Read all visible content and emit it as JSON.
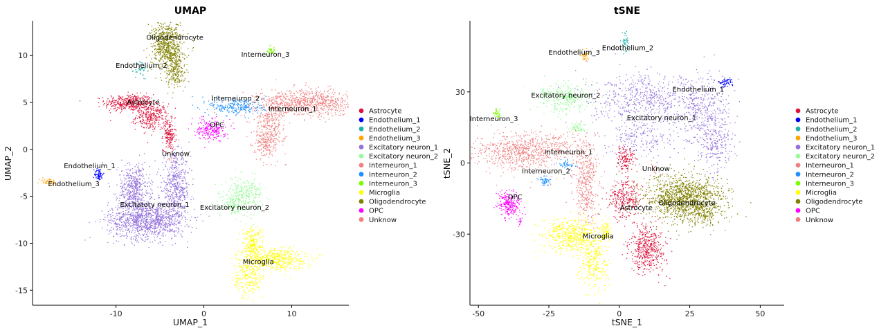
{
  "chart_data": [
    {
      "type": "scatter",
      "title": "UMAP",
      "xlabel": "UMAP_1",
      "ylabel": "UMAP_2",
      "xlim": [
        -19.5,
        16.5
      ],
      "ylim": [
        -16.6,
        13.7
      ],
      "xticks": [
        -10,
        0,
        10
      ],
      "yticks": [
        -15,
        -10,
        -5,
        0,
        5,
        10
      ],
      "clusters": [
        {
          "name": "Astrocyte",
          "label": "Astrocyte",
          "parts": [
            {
              "x": -8.5,
              "y": 5.0,
              "sx": 1.4,
              "sy": 0.45,
              "n": 420
            },
            {
              "x": -6.0,
              "y": 3.5,
              "sx": 0.9,
              "sy": 0.7,
              "n": 300
            },
            {
              "x": -4.0,
              "y": 1.6,
              "sx": 0.35,
              "sy": 0.8,
              "n": 160
            }
          ],
          "label_x": -6.9,
          "label_y": 5.0
        },
        {
          "name": "Endothelium_1",
          "label": "Endothelium_1",
          "parts": [
            {
              "x": -12.0,
              "y": -2.6,
              "sx": 0.25,
              "sy": 0.35,
              "n": 70
            }
          ],
          "label_x": -13.0,
          "label_y": -1.8
        },
        {
          "name": "Endothelium_2",
          "label": "Endothelium_2",
          "parts": [
            {
              "x": -7.2,
              "y": 8.5,
              "sx": 0.35,
              "sy": 0.5,
              "n": 45
            }
          ],
          "label_x": -7.1,
          "label_y": 8.9
        },
        {
          "name": "Endothelium_3",
          "label": "Endothelium_3",
          "parts": [
            {
              "x": -17.8,
              "y": -3.4,
              "sx": 0.5,
              "sy": 0.2,
              "n": 45
            }
          ],
          "label_x": -14.8,
          "label_y": -3.7
        },
        {
          "name": "Excitatory neuron_1",
          "label": "Excitatory neuron_1",
          "parts": [
            {
              "x": -6.5,
              "y": -7.5,
              "sx": 2.2,
              "sy": 1.0,
              "n": 1100
            },
            {
              "x": -8.0,
              "y": -4.2,
              "sx": 0.9,
              "sy": 1.3,
              "n": 480
            },
            {
              "x": -3.2,
              "y": -4.0,
              "sx": 0.8,
              "sy": 1.7,
              "n": 480
            }
          ],
          "label_x": -5.6,
          "label_y": -5.9
        },
        {
          "name": "Excitatory neuron_2",
          "label": "Excitatory neuron_2",
          "parts": [
            {
              "x": 4.5,
              "y": -4.8,
              "sx": 1.1,
              "sy": 0.9,
              "n": 300
            },
            {
              "x": 3.2,
              "y": -5.8,
              "sx": 0.6,
              "sy": 0.5,
              "n": 80
            }
          ],
          "label_x": 3.5,
          "label_y": -6.2
        },
        {
          "name": "Interneuron_1",
          "label": "Interneuron_1",
          "parts": [
            {
              "x": 12.0,
              "y": 5.0,
              "sx": 3.0,
              "sy": 0.7,
              "n": 850
            },
            {
              "x": 7.5,
              "y": 2.5,
              "sx": 0.9,
              "sy": 1.5,
              "n": 320
            },
            {
              "x": 6.8,
              "y": 0.6,
              "sx": 0.5,
              "sy": 0.7,
              "n": 120
            }
          ],
          "label_x": 10.1,
          "label_y": 4.3
        },
        {
          "name": "Interneuron_2",
          "label": "Interneuron_2",
          "parts": [
            {
              "x": 3.8,
              "y": 4.6,
              "sx": 1.6,
              "sy": 0.5,
              "n": 260
            }
          ],
          "label_x": 3.6,
          "label_y": 5.4
        },
        {
          "name": "Interneuron_3",
          "label": "Interneuron_3",
          "parts": [
            {
              "x": 7.6,
              "y": 10.6,
              "sx": 0.25,
              "sy": 0.25,
              "n": 35
            }
          ],
          "label_x": 7.0,
          "label_y": 10.1
        },
        {
          "name": "Microglia",
          "label": "Microglia",
          "parts": [
            {
              "x": 8.0,
              "y": -11.6,
              "sx": 1.8,
              "sy": 0.6,
              "n": 450
            },
            {
              "x": 5.5,
              "y": -10.0,
              "sx": 0.6,
              "sy": 0.9,
              "n": 220
            },
            {
              "x": 5.0,
              "y": -13.6,
              "sx": 0.8,
              "sy": 1.1,
              "n": 220
            }
          ],
          "label_x": 6.2,
          "label_y": -12.0
        },
        {
          "name": "Oligodendrocyte",
          "label": "Oligodendrocyte",
          "parts": [
            {
              "x": -4.2,
              "y": 11.0,
              "sx": 0.9,
              "sy": 1.3,
              "n": 700
            },
            {
              "x": -3.2,
              "y": 8.3,
              "sx": 0.5,
              "sy": 0.9,
              "n": 180
            }
          ],
          "label_x": -3.3,
          "label_y": 11.9
        },
        {
          "name": "OPC",
          "label": "OPC",
          "parts": [
            {
              "x": 0.8,
              "y": 2.2,
              "sx": 0.8,
              "sy": 0.6,
              "n": 220
            }
          ],
          "label_x": 1.5,
          "label_y": 2.6
        },
        {
          "name": "Unknow",
          "label": "Unknow",
          "parts": [
            {
              "x": -3.8,
              "y": -1.0,
              "sx": 0.2,
              "sy": 0.2,
              "n": 10
            }
          ],
          "label_x": -3.2,
          "label_y": -0.5
        }
      ]
    },
    {
      "type": "scatter",
      "title": "tSNE",
      "xlabel": "tSNE_1",
      "ylabel": "tSNE_2",
      "xlim": [
        -53,
        58.5
      ],
      "ylim": [
        -60,
        60
      ],
      "xticks": [
        -50,
        -25,
        0,
        25,
        50
      ],
      "yticks": [
        -30,
        0,
        30
      ],
      "clusters": [
        {
          "name": "Astrocyte",
          "label": "Astrocyte",
          "parts": [
            {
              "x": 10.0,
              "y": -36.0,
              "sx": 3.2,
              "sy": 5.0,
              "n": 450
            },
            {
              "x": 2.0,
              "y": -15.0,
              "sx": 3.0,
              "sy": 4.0,
              "n": 280
            },
            {
              "x": 2.0,
              "y": 2.0,
              "sx": 1.6,
              "sy": 3.2,
              "n": 140
            }
          ],
          "label_x": 6.0,
          "label_y": -19.0
        },
        {
          "name": "Endothelium_1",
          "label": "Endothelium_1",
          "parts": [
            {
              "x": 37.5,
              "y": 34.0,
              "sx": 1.3,
              "sy": 1.0,
              "n": 60
            }
          ],
          "label_x": 28.0,
          "label_y": 31.0
        },
        {
          "name": "Endothelium_2",
          "label": "Endothelium_2",
          "parts": [
            {
              "x": 1.8,
              "y": 51.0,
              "sx": 0.8,
              "sy": 2.0,
              "n": 45
            }
          ],
          "label_x": 3.0,
          "label_y": 48.5
        },
        {
          "name": "Endothelium_3",
          "label": "Endothelium_3",
          "parts": [
            {
              "x": -12.5,
              "y": 45.5,
              "sx": 1.0,
              "sy": 1.2,
              "n": 35
            }
          ],
          "label_x": -16.0,
          "label_y": 46.5
        },
        {
          "name": "Excitatory neuron_1",
          "label": "Excitatory neuron_1",
          "parts": [
            {
              "x": 10.0,
              "y": 27.0,
              "sx": 10.0,
              "sy": 5.0,
              "n": 550
            },
            {
              "x": 30.0,
              "y": 23.0,
              "sx": 4.5,
              "sy": 7.0,
              "n": 350
            },
            {
              "x": 34.0,
              "y": 8.0,
              "sx": 3.0,
              "sy": 5.0,
              "n": 220
            },
            {
              "x": 8.0,
              "y": 11.0,
              "sx": 6.0,
              "sy": 4.5,
              "n": 220
            }
          ],
          "label_x": 15.0,
          "label_y": 19.0
        },
        {
          "name": "Excitatory neuron_2",
          "label": "Excitatory neuron_2",
          "parts": [
            {
              "x": -19.0,
              "y": 28.0,
              "sx": 5.0,
              "sy": 3.0,
              "n": 330
            },
            {
              "x": -15.0,
              "y": 15.0,
              "sx": 1.5,
              "sy": 1.2,
              "n": 60
            }
          ],
          "label_x": -19.0,
          "label_y": 28.5
        },
        {
          "name": "Interneuron_1",
          "label": "Interneuron_1",
          "parts": [
            {
              "x": -35.0,
              "y": 5.0,
              "sx": 8.0,
              "sy": 3.8,
              "n": 700
            },
            {
              "x": -12.0,
              "y": -7.0,
              "sx": 2.2,
              "sy": 9.0,
              "n": 420
            },
            {
              "x": -22.0,
              "y": 8.0,
              "sx": 2.5,
              "sy": 2.5,
              "n": 80
            }
          ],
          "label_x": -18.0,
          "label_y": 4.5
        },
        {
          "name": "Interneuron_2",
          "label": "Interneuron_2",
          "parts": [
            {
              "x": -26.5,
              "y": -7.5,
              "sx": 1.2,
              "sy": 1.0,
              "n": 55
            },
            {
              "x": -19.0,
              "y": -0.5,
              "sx": 1.5,
              "sy": 0.8,
              "n": 45
            }
          ],
          "label_x": -26.0,
          "label_y": -3.5
        },
        {
          "name": "Interneuron_3",
          "label": "Interneuron_3",
          "parts": [
            {
              "x": -43.5,
              "y": 21.0,
              "sx": 0.6,
              "sy": 1.0,
              "n": 40
            }
          ],
          "label_x": -44.5,
          "label_y": 18.5
        },
        {
          "name": "Microglia",
          "label": "Microglia",
          "parts": [
            {
              "x": -17.0,
              "y": -30.0,
              "sx": 5.0,
              "sy": 3.5,
              "n": 500
            },
            {
              "x": -9.0,
              "y": -42.0,
              "sx": 2.4,
              "sy": 5.5,
              "n": 260
            },
            {
              "x": -5.0,
              "y": -29.0,
              "sx": 1.0,
              "sy": 2.5,
              "n": 80
            }
          ],
          "label_x": -7.5,
          "label_y": -31.0
        },
        {
          "name": "Oligodendrocyte",
          "label": "Oligodendrocyte",
          "parts": [
            {
              "x": 23.0,
              "y": -15.0,
              "sx": 7.0,
              "sy": 5.0,
              "n": 1300
            },
            {
              "x": 30.0,
              "y": -21.0,
              "sx": 3.0,
              "sy": 2.5,
              "n": 120
            }
          ],
          "label_x": 24.0,
          "label_y": -17.0
        },
        {
          "name": "OPC",
          "label": "OPC",
          "parts": [
            {
              "x": -39.0,
              "y": -17.5,
              "sx": 2.0,
              "sy": 2.8,
              "n": 240
            },
            {
              "x": -35.5,
              "y": -24.5,
              "sx": 0.4,
              "sy": 0.8,
              "n": 14
            }
          ],
          "label_x": -37.0,
          "label_y": -14.5
        },
        {
          "name": "Unknow",
          "label": "Unknow",
          "parts": [
            {
              "x": 13.0,
              "y": -3.0,
              "sx": 1.5,
              "sy": 1.5,
              "n": 14
            }
          ],
          "label_x": 13.0,
          "label_y": -2.5
        }
      ]
    }
  ],
  "legend": {
    "placement": "right",
    "items": [
      {
        "name": "Astrocyte",
        "color": "#DC143C"
      },
      {
        "name": "Endothelium_1",
        "color": "#0000FF"
      },
      {
        "name": "Endothelium_2",
        "color": "#20B2AA"
      },
      {
        "name": "Endothelium_3",
        "color": "#FFA500"
      },
      {
        "name": "Excitatory neuron_1",
        "color": "#9370DB"
      },
      {
        "name": "Excitatory neuron_2",
        "color": "#98FB98"
      },
      {
        "name": "Interneuron_1",
        "color": "#F08080"
      },
      {
        "name": "Interneuron_2",
        "color": "#1E90FF"
      },
      {
        "name": "Interneuron_3",
        "color": "#7CFC00"
      },
      {
        "name": "Microglia",
        "color": "#FFFF00"
      },
      {
        "name": "Oligodendrocyte",
        "color": "#808000"
      },
      {
        "name": "OPC",
        "color": "#FF00FF"
      },
      {
        "name": "Unknow",
        "color": "#F08080"
      }
    ]
  }
}
